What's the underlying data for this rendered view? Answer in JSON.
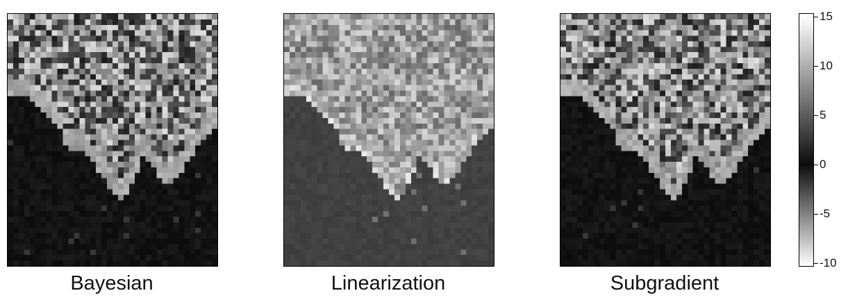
{
  "chart_data": {
    "type": "heatmap",
    "panels": [
      {
        "title": "Bayesian",
        "background_value": -0.3
      },
      {
        "title": "Linearization",
        "background_value": 3.3
      },
      {
        "title": "Subgradient",
        "background_value": -0.3
      }
    ],
    "grid": {
      "rows": 46,
      "cols": 38
    },
    "colorbar": {
      "ticks": [
        15,
        10,
        5,
        0,
        -5,
        -10
      ],
      "tick_labels": [
        "15",
        "10",
        "5",
        "0",
        "-5",
        "-10"
      ],
      "vlim": [
        -10.3,
        15.3
      ]
    }
  }
}
